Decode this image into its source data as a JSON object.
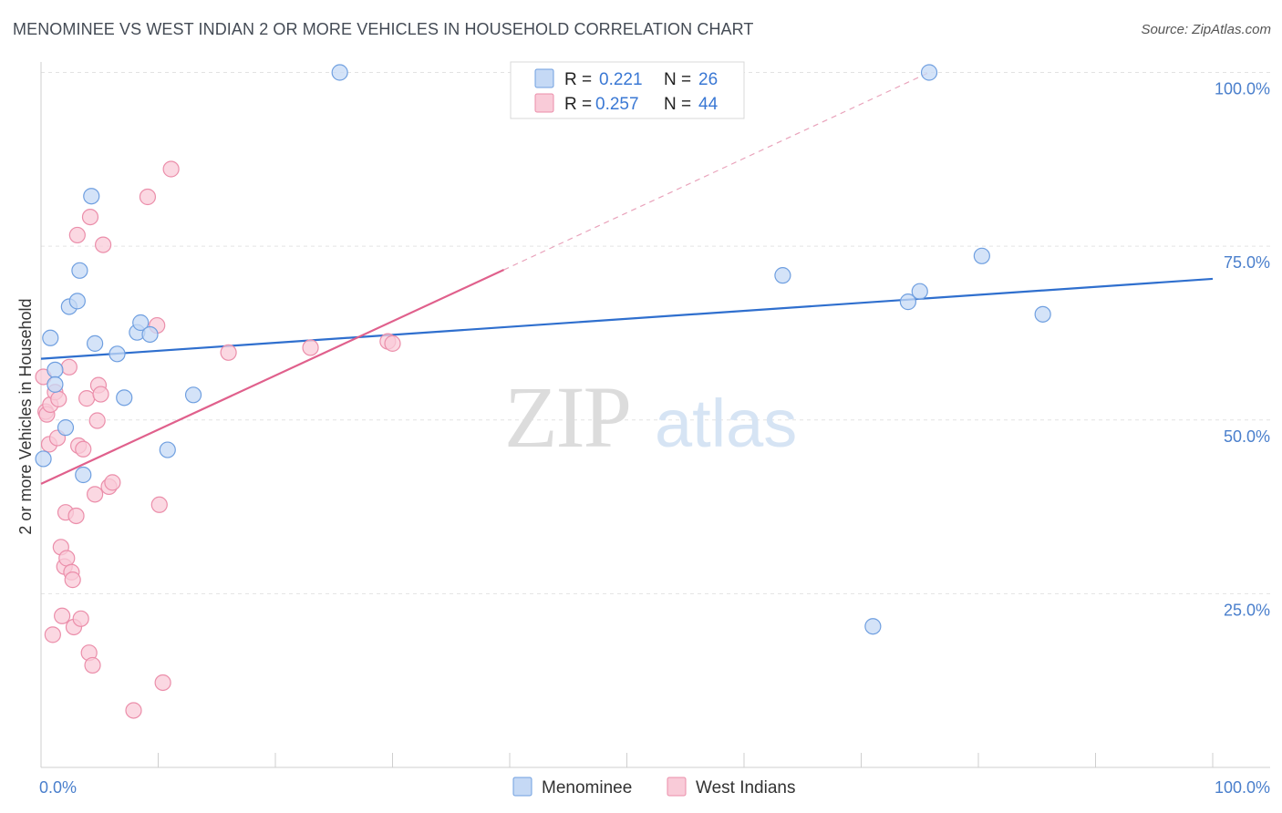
{
  "header": {
    "title": "MENOMINEE VS WEST INDIAN 2 OR MORE VEHICLES IN HOUSEHOLD CORRELATION CHART",
    "source": "Source: ZipAtlas.com"
  },
  "watermark": {
    "zip": "ZIP",
    "atlas": "atlas"
  },
  "colors": {
    "blue_fill": "#c5d9f5",
    "blue_stroke": "#6f9fe0",
    "blue_line": "#2f6fce",
    "pink_fill": "#f9cbd8",
    "pink_stroke": "#eb8eaa",
    "pink_line": "#e0608c",
    "grid": "#e3e3e3",
    "tick_label": "#4a7fcc"
  },
  "chart_data": {
    "type": "scatter",
    "title": "MENOMINEE VS WEST INDIAN 2 OR MORE VEHICLES IN HOUSEHOLD CORRELATION CHART",
    "xlabel": "",
    "ylabel": "2 or more Vehicles in Household",
    "xlim": [
      0,
      100
    ],
    "ylim": [
      0,
      102
    ],
    "x_tick_labels": [
      {
        "value": 0,
        "label": "0.0%"
      },
      {
        "value": 100,
        "label": "100.0%"
      }
    ],
    "y_tick_labels": [
      {
        "value": 100,
        "label": "100.0%"
      },
      {
        "value": 75,
        "label": "75.0%"
      },
      {
        "value": 50,
        "label": "50.0%"
      },
      {
        "value": 25,
        "label": "25.0%"
      }
    ],
    "grid": true,
    "legend_position": "top-center",
    "series": [
      {
        "name": "Menominee",
        "R": "0.221",
        "N": "26",
        "trend": {
          "x0": 0,
          "y0": 58.8,
          "x1": 100,
          "y1": 70.3
        },
        "points": [
          [
            0.2,
            44.4
          ],
          [
            0.8,
            61.8
          ],
          [
            1.2,
            57.2
          ],
          [
            1.2,
            55.1
          ],
          [
            2.1,
            48.9
          ],
          [
            2.4,
            66.3
          ],
          [
            3.1,
            67.1
          ],
          [
            3.3,
            71.5
          ],
          [
            3.6,
            42.1
          ],
          [
            4.3,
            82.2
          ],
          [
            4.6,
            61.0
          ],
          [
            6.5,
            59.5
          ],
          [
            7.1,
            53.2
          ],
          [
            8.2,
            62.6
          ],
          [
            8.5,
            64.0
          ],
          [
            9.3,
            62.3
          ],
          [
            10.8,
            45.7
          ],
          [
            13.0,
            53.6
          ],
          [
            25.5,
            100.0
          ],
          [
            63.3,
            70.8
          ],
          [
            71.0,
            20.3
          ],
          [
            74.0,
            67.0
          ],
          [
            75.0,
            68.5
          ],
          [
            75.8,
            100.0
          ],
          [
            80.3,
            73.6
          ],
          [
            85.5,
            65.2
          ]
        ]
      },
      {
        "name": "West Indians",
        "R": "0.257",
        "N": "44",
        "trend": {
          "x0": 0,
          "y0": 40.8,
          "x1": 39.5,
          "y1": 71.6
        },
        "trend_dashed": {
          "x0": 39.5,
          "y0": 71.6,
          "x1": 75.8,
          "y1": 100.0
        },
        "points": [
          [
            0.2,
            56.2
          ],
          [
            0.4,
            51.2
          ],
          [
            0.5,
            50.8
          ],
          [
            0.7,
            46.5
          ],
          [
            0.8,
            52.2
          ],
          [
            1.0,
            19.1
          ],
          [
            1.2,
            54.0
          ],
          [
            1.4,
            47.4
          ],
          [
            1.5,
            53.0
          ],
          [
            1.7,
            31.7
          ],
          [
            1.8,
            21.8
          ],
          [
            2.0,
            28.9
          ],
          [
            2.1,
            36.7
          ],
          [
            2.2,
            30.1
          ],
          [
            2.4,
            57.6
          ],
          [
            2.6,
            28.1
          ],
          [
            2.7,
            27.0
          ],
          [
            2.8,
            20.2
          ],
          [
            3.0,
            36.2
          ],
          [
            3.2,
            46.3
          ],
          [
            3.4,
            21.4
          ],
          [
            3.6,
            45.8
          ],
          [
            3.9,
            53.1
          ],
          [
            4.1,
            16.5
          ],
          [
            4.2,
            79.2
          ],
          [
            4.4,
            14.7
          ],
          [
            4.6,
            39.3
          ],
          [
            4.8,
            49.9
          ],
          [
            4.9,
            55.0
          ],
          [
            5.1,
            53.7
          ],
          [
            3.1,
            76.6
          ],
          [
            5.3,
            75.2
          ],
          [
            5.8,
            40.4
          ],
          [
            6.1,
            41.0
          ],
          [
            7.9,
            8.2
          ],
          [
            9.1,
            82.1
          ],
          [
            9.9,
            63.6
          ],
          [
            10.1,
            37.8
          ],
          [
            10.4,
            12.2
          ],
          [
            11.1,
            86.1
          ],
          [
            16.0,
            59.7
          ],
          [
            23.0,
            60.4
          ],
          [
            29.6,
            61.3
          ],
          [
            30.0,
            61.0
          ]
        ]
      }
    ]
  },
  "legend_bottom": [
    {
      "name": "Menominee"
    },
    {
      "name": "West Indians"
    }
  ]
}
